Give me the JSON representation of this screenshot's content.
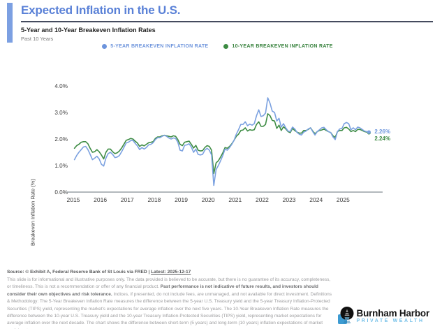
{
  "header": {
    "title": "Expected Inflation in the U.S.",
    "subtitle": "5-Year and 10-Year Breakeven Inflation Rates",
    "period": "Past 10 Years"
  },
  "legend": [
    {
      "label": "5-YEAR BREAKEVEN INFLATION RATE",
      "color": "#6d94dc",
      "text_color": "#6d94dc"
    },
    {
      "label": "10-YEAR BREAKEVEN INFLATION RATE",
      "color": "#3c8b42",
      "text_color": "#36813c"
    }
  ],
  "chart_data": {
    "type": "line",
    "title": "5-Year and 10-Year Breakeven Inflation Rates",
    "xlabel": "",
    "ylabel": "Breakeven Inflation Rate (%)",
    "x_start": 2015,
    "x_end": 2026,
    "x_ticks": [
      "2015",
      "2016",
      "2017",
      "2018",
      "2019",
      "2020",
      "2021",
      "2022",
      "2023",
      "2024",
      "2025"
    ],
    "ylim": [
      0,
      4
    ],
    "y_tick_values": [
      0,
      1,
      2,
      3,
      4
    ],
    "y_ticks": [
      "0.0%",
      "1.0%",
      "2.0%",
      "3.0%",
      "4.0%"
    ],
    "grid": false,
    "legend_position": "top",
    "points_per_year": 12,
    "series": [
      {
        "name": "5-Year Breakeven Inflation Rate",
        "color": "#7ba1e0",
        "end_label": "2.26%",
        "end_value": 2.26,
        "values": [
          1.22,
          1.38,
          1.5,
          1.6,
          1.7,
          1.72,
          1.6,
          1.42,
          1.22,
          1.28,
          1.35,
          1.25,
          1.05,
          0.98,
          1.28,
          1.45,
          1.5,
          1.42,
          1.3,
          1.32,
          1.38,
          1.52,
          1.68,
          1.85,
          1.88,
          1.94,
          1.95,
          1.84,
          1.74,
          1.6,
          1.68,
          1.62,
          1.68,
          1.78,
          1.8,
          1.86,
          1.98,
          2.05,
          2.05,
          2.1,
          2.14,
          2.1,
          2.04,
          2.0,
          2.04,
          2.02,
          1.88,
          1.58,
          1.55,
          1.76,
          1.78,
          1.82,
          1.7,
          1.5,
          1.62,
          1.42,
          1.4,
          1.42,
          1.58,
          1.65,
          1.58,
          1.4,
          0.25,
          0.85,
          1.0,
          1.18,
          1.38,
          1.62,
          1.58,
          1.68,
          1.8,
          1.95,
          2.18,
          2.35,
          2.55,
          2.55,
          2.65,
          2.5,
          2.56,
          2.52,
          2.58,
          2.88,
          3.1,
          2.85,
          2.88,
          2.98,
          3.55,
          3.35,
          3.05,
          3.0,
          2.68,
          2.78,
          2.45,
          2.58,
          2.42,
          2.3,
          2.28,
          2.45,
          2.38,
          2.25,
          2.18,
          2.15,
          2.26,
          2.3,
          2.38,
          2.42,
          2.28,
          2.15,
          2.28,
          2.35,
          2.42,
          2.44,
          2.35,
          2.28,
          2.24,
          2.08,
          1.98,
          2.28,
          2.38,
          2.4,
          2.58,
          2.62,
          2.58,
          2.35,
          2.42,
          2.35,
          2.45,
          2.42,
          2.36,
          2.3,
          2.28,
          2.26
        ]
      },
      {
        "name": "10-Year Breakeven Inflation Rate",
        "color": "#3e8c44",
        "end_label": "2.24%",
        "end_value": 2.24,
        "values": [
          1.65,
          1.75,
          1.8,
          1.88,
          1.9,
          1.9,
          1.82,
          1.65,
          1.5,
          1.52,
          1.6,
          1.52,
          1.4,
          1.25,
          1.5,
          1.62,
          1.62,
          1.52,
          1.45,
          1.48,
          1.55,
          1.66,
          1.8,
          1.95,
          1.98,
          2.02,
          2.0,
          1.92,
          1.85,
          1.72,
          1.78,
          1.74,
          1.8,
          1.86,
          1.88,
          1.9,
          2.02,
          2.08,
          2.08,
          2.12,
          2.14,
          2.12,
          2.1,
          2.08,
          2.12,
          2.1,
          1.98,
          1.8,
          1.75,
          1.88,
          1.9,
          1.92,
          1.8,
          1.66,
          1.76,
          1.58,
          1.55,
          1.56,
          1.68,
          1.75,
          1.72,
          1.58,
          0.7,
          1.1,
          1.18,
          1.32,
          1.48,
          1.68,
          1.65,
          1.72,
          1.82,
          1.95,
          2.1,
          2.18,
          2.32,
          2.34,
          2.42,
          2.3,
          2.35,
          2.33,
          2.35,
          2.55,
          2.65,
          2.48,
          2.48,
          2.55,
          2.95,
          2.88,
          2.7,
          2.68,
          2.4,
          2.52,
          2.32,
          2.46,
          2.38,
          2.28,
          2.24,
          2.4,
          2.32,
          2.26,
          2.22,
          2.22,
          2.32,
          2.32,
          2.36,
          2.42,
          2.3,
          2.2,
          2.28,
          2.32,
          2.34,
          2.38,
          2.32,
          2.28,
          2.24,
          2.12,
          2.06,
          2.28,
          2.32,
          2.32,
          2.42,
          2.44,
          2.38,
          2.28,
          2.32,
          2.28,
          2.36,
          2.36,
          2.32,
          2.28,
          2.26,
          2.24
        ]
      }
    ]
  },
  "footer": {
    "source_prefix": "Source: © Exhibit A, Federal Reserve Bank of St Louis via FRED | ",
    "source_latest": "Latest: 2025-12-17",
    "disclaimer_1": "This slide is for informational and illustrative purposes only. The data provided is believed to be accurate, but there is no guarantee of its accuracy, completeness, or timeliness. This is not a recommendation or offer of any financial product. ",
    "disclaimer_bold": "Past performance is not indicative of future results, and investors should consider their own objectives and risk tolerance.",
    "disclaimer_2": " Indices, if presented, do not include fees, are unmanaged, and not available for direct investment. Definitions & Methodology: The 5-Year Breakeven Inflation Rate measures the difference between the 5-year U.S. Treasury yield and the 5-year Treasury Inflation-Protected Securities (TIPS) yield, representing the market's expectations for average inflation over the next five years. The 10-Year Breakeven Inflation Rate measures the difference between the 10-year U.S. Treasury yield and the 10-year Treasury Inflation-Protected Securities (TIPS) yield, representing market expectations for average inflation over the next decade. The chart shows the difference between short-term (5 years) and long-term (10 years) inflation expectations of market participants."
  },
  "logo": {
    "name": "Burnham Harbor",
    "tagline": "PRIVATE WEALTH"
  },
  "colors": {
    "accent_blue": "#7ca0e2",
    "title_blue": "#5a81d7",
    "divider": "#454b5e",
    "axis_text": "#3c3c3c",
    "axis_line": "#9aa0a6"
  }
}
